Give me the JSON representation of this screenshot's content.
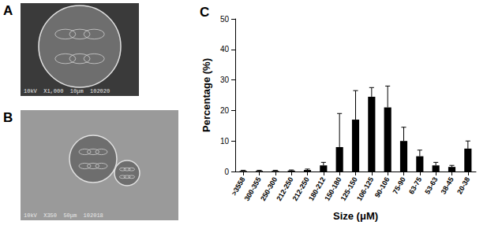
{
  "panels": [
    {
      "label": "A",
      "caption": "10kV  X1,000  10μm  102020"
    },
    {
      "label": "B",
      "caption": "10kV  X350  50μm  102018"
    }
  ],
  "chart_data": {
    "type": "bar",
    "title": "C",
    "x_label": "Size (μM)",
    "y_label": "Percentage (%)",
    "categories": [
      ">3558",
      "300-355",
      "250-300",
      "212-250",
      "212-250",
      "180-212",
      "150-180",
      "125-150",
      "106-125",
      "90-106",
      "75-90",
      "63-75",
      "53-63",
      "38-45",
      "20-38"
    ],
    "values": [
      0.2,
      0.2,
      0.2,
      0.3,
      0.5,
      2,
      8,
      17,
      24.5,
      21,
      10,
      5,
      2,
      1.5,
      7.5
    ],
    "errors": [
      0.2,
      0.2,
      0.2,
      0.2,
      0.3,
      1,
      11,
      9.5,
      3,
      7,
      4.5,
      2,
      1,
      0.5,
      2.5
    ],
    "color": "#000000",
    "ylim": [
      0,
      50
    ],
    "yticks": [
      0,
      10,
      20,
      30,
      40,
      50
    ],
    "grid": false
  }
}
